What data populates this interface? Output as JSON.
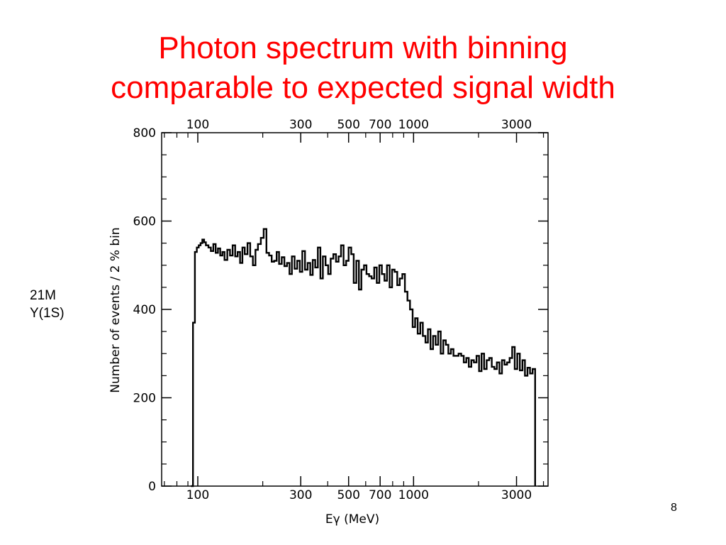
{
  "slide": {
    "title_line1": "Photon spectrum with binning",
    "title_line2": "comparable to expected signal width",
    "note_line1": "21M",
    "note_line2": "Y(1S)",
    "page_number": "8",
    "title_color": "#ff0000"
  },
  "chart_data": {
    "type": "histogram-line",
    "x_scale": "log",
    "xlabel": "Eγ (MeV)",
    "ylabel": "Number of events / 2 % bin",
    "xlim": [
      68,
      4200
    ],
    "ylim": [
      0,
      800
    ],
    "x_ticks": [
      100,
      300,
      500,
      700,
      1000,
      3000
    ],
    "x_tick_labels": [
      "100",
      "300",
      "500",
      "700",
      "1000",
      "3000"
    ],
    "y_ticks": [
      0,
      200,
      400,
      600,
      800
    ],
    "y_tick_labels": [
      "0",
      "200",
      "400",
      "600",
      "800"
    ],
    "line_color": "#000000",
    "series": [
      {
        "x": [
          93,
          95,
          97,
          99,
          101,
          103,
          105,
          107,
          109,
          112,
          115,
          118,
          121,
          124,
          127,
          130,
          133,
          137,
          141,
          145,
          149,
          153,
          157,
          161,
          165,
          170,
          175,
          180,
          185,
          190,
          196,
          202,
          208,
          214,
          220,
          226,
          232,
          238,
          245,
          252,
          259,
          266,
          273,
          281,
          289,
          297,
          305,
          314,
          323,
          332,
          341,
          350,
          360,
          370,
          380,
          391,
          402,
          413,
          425,
          437,
          449,
          461,
          474,
          487,
          500,
          514,
          528,
          543,
          558,
          573,
          589,
          605,
          622,
          639,
          657,
          675,
          694,
          713,
          733,
          753,
          774,
          795,
          817,
          840,
          863,
          887,
          912,
          937,
          963,
          990,
          1017,
          1045,
          1074,
          1104,
          1135,
          1166,
          1198,
          1231,
          1265,
          1300,
          1336,
          1373,
          1411,
          1450,
          1490,
          1531,
          1573,
          1617,
          1662,
          1708,
          1755,
          1803,
          1853,
          1904,
          1957,
          2011,
          2066,
          2123,
          2182,
          2242,
          2304,
          2368,
          2433,
          2500,
          2569,
          2640,
          2713,
          2788,
          2865,
          2944,
          3025,
          3109,
          3195,
          3283,
          3373,
          3466,
          3562,
          3660
        ],
        "y": [
          0,
          370,
          530,
          540,
          545,
          550,
          558,
          552,
          545,
          540,
          532,
          548,
          528,
          538,
          522,
          530,
          512,
          535,
          522,
          545,
          520,
          530,
          505,
          540,
          525,
          550,
          520,
          500,
          535,
          548,
          562,
          582,
          528,
          522,
          508,
          510,
          530,
          503,
          518,
          498,
          505,
          480,
          520,
          492,
          510,
          485,
          532,
          490,
          505,
          478,
          512,
          495,
          540,
          470,
          520,
          500,
          480,
          515,
          525,
          508,
          520,
          545,
          500,
          510,
          540,
          525,
          460,
          510,
          445,
          490,
          500,
          480,
          475,
          470,
          495,
          460,
          500,
          480,
          465,
          500,
          450,
          490,
          485,
          455,
          470,
          480,
          440,
          420,
          400,
          360,
          380,
          345,
          370,
          340,
          325,
          355,
          310,
          340,
          320,
          350,
          300,
          330,
          320,
          300,
          310,
          295,
          295,
          300,
          295,
          280,
          290,
          270,
          285,
          280,
          295,
          260,
          300,
          265,
          285,
          290,
          270,
          265,
          280,
          255,
          285,
          275,
          280,
          290,
          315,
          265,
          300,
          262,
          285,
          250,
          268,
          255,
          265,
          0
        ]
      }
    ]
  }
}
